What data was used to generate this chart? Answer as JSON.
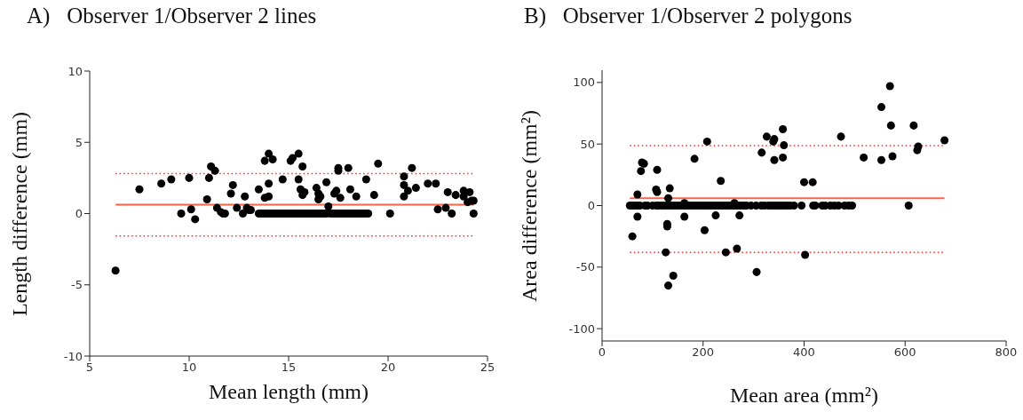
{
  "chart_data": [
    {
      "type": "scatter",
      "title": "A)   Observer 1/Observer 2 lines",
      "xlabel": "Mean length (mm)",
      "ylabel": "Length difference (mm)",
      "xlim": [
        5,
        25
      ],
      "ylim": [
        -10,
        10
      ],
      "xticks": [
        5,
        10,
        15,
        20,
        25
      ],
      "yticks": [
        -10,
        -5,
        0,
        5,
        10
      ],
      "marker": "circle",
      "series": [
        {
          "color": "#000000",
          "x": [
            6.3,
            7.5,
            8.6,
            9.1,
            9.6,
            10.0,
            10.1,
            10.3,
            10.9,
            11.0,
            11.1,
            11.3,
            11.4,
            11.6,
            11.7,
            11.8,
            12.1,
            12.2,
            12.4,
            12.7,
            12.8,
            12.9,
            13.0,
            13.1,
            13.5,
            13.8,
            13.8,
            14.0,
            14.0,
            14.0,
            14.2,
            14.7,
            15.1,
            15.2,
            15.5,
            15.5,
            15.6,
            15.7,
            15.7,
            15.8,
            16.4,
            16.5,
            16.5,
            16.6,
            16.9,
            17.0,
            17.3,
            17.4,
            17.5,
            17.5,
            17.6,
            18.0,
            18.1,
            18.4,
            18.9,
            19.3,
            19.5,
            20.1,
            20.8,
            20.8,
            20.8,
            21.0,
            21.2,
            21.4,
            22.0,
            22.4,
            22.5,
            22.9,
            23.0,
            23.2,
            23.4,
            23.8,
            23.8,
            24.0,
            24.1,
            24.2,
            24.3,
            24.3,
            13.5,
            13.6,
            13.7,
            13.8,
            13.9,
            14.0,
            14.1,
            14.2,
            14.3,
            14.4,
            14.5,
            14.6,
            14.7,
            14.8,
            14.9,
            15.0,
            15.1,
            15.2,
            15.3,
            15.4,
            15.5,
            15.6,
            15.7,
            15.8,
            15.9,
            16.0,
            16.1,
            16.2,
            16.3,
            16.4,
            16.5,
            16.6,
            16.7,
            16.8,
            16.9,
            17.1,
            17.2,
            17.3,
            17.4,
            17.5,
            17.6,
            17.7,
            17.8,
            17.9,
            18.0,
            18.1,
            18.2,
            18.3,
            18.4,
            18.5,
            18.6,
            18.7,
            18.8,
            18.9,
            19.0
          ],
          "values": [
            -4.0,
            1.7,
            2.1,
            2.4,
            0,
            2.5,
            0.3,
            -0.4,
            1.0,
            2.5,
            3.3,
            3.0,
            0.4,
            0.1,
            0,
            0,
            1.4,
            2.0,
            0.4,
            0,
            1.2,
            0.4,
            0.25,
            0.25,
            1.7,
            3.7,
            1.1,
            4.2,
            2.1,
            1.2,
            3.8,
            2.4,
            3.7,
            3.9,
            4.2,
            2.4,
            1.7,
            3.3,
            1.3,
            1.5,
            1.8,
            1.0,
            1.4,
            1.2,
            2.2,
            0.5,
            1.4,
            1.6,
            3.2,
            3.0,
            1.1,
            3.2,
            1.7,
            1.2,
            2.4,
            1.3,
            3.5,
            0,
            2.0,
            2.6,
            1.2,
            1.6,
            3.2,
            1.8,
            2.1,
            2.1,
            0.3,
            0.4,
            1.5,
            0,
            1.3,
            1.2,
            1.6,
            0.8,
            1.5,
            0.9,
            0,
            0.9,
            0,
            0,
            0,
            0,
            0,
            0,
            0,
            0,
            0,
            0,
            0,
            0,
            0,
            0,
            0,
            0,
            0,
            0,
            0,
            0,
            0,
            0,
            0,
            0,
            0,
            0,
            0,
            0,
            0,
            0,
            0,
            0,
            0,
            0,
            0,
            0,
            0,
            0,
            0,
            0,
            0,
            0,
            0,
            0,
            0,
            0,
            0,
            0,
            0,
            0,
            0,
            0,
            0,
            0,
            0
          ]
        }
      ],
      "ref_lines": [
        {
          "axis": "y",
          "value": 0.62,
          "color": "#ff6347",
          "line_style": "solid"
        },
        {
          "axis": "y",
          "value": 2.8,
          "color": "#ff2a2a",
          "line_style": "dotted"
        },
        {
          "axis": "y",
          "value": -1.58,
          "color": "#ff2a2a",
          "line_style": "dotted"
        }
      ]
    },
    {
      "type": "scatter",
      "title": "B)   Observer 1/Observer 2 polygons",
      "xlabel": "Mean area (mm²)",
      "ylabel": "Area difference (mm²)",
      "xlim": [
        0,
        800
      ],
      "ylim": [
        -110,
        110
      ],
      "xticks": [
        0,
        200,
        400,
        600,
        800
      ],
      "yticks": [
        -100,
        -50,
        0,
        50,
        100
      ],
      "marker": "circle",
      "series": [
        {
          "color": "#000000",
          "x": [
            60,
            70,
            70,
            77,
            79,
            83,
            109,
            107,
            109,
            126,
            129,
            129,
            131,
            131,
            134,
            141,
            163,
            163,
            183,
            203,
            208,
            225,
            235,
            245,
            262,
            267,
            272,
            306,
            316,
            326,
            339,
            341,
            341,
            358,
            358,
            360,
            400,
            402,
            417,
            473,
            518,
            553,
            553,
            570,
            572,
            575,
            607,
            617,
            624,
            626,
            678,
            55,
            60,
            65,
            70,
            75,
            85,
            90,
            100,
            108,
            112,
            118,
            124,
            130,
            136,
            142,
            148,
            154,
            160,
            166,
            172,
            178,
            184,
            190,
            196,
            202,
            208,
            214,
            220,
            226,
            232,
            238,
            244,
            250,
            256,
            262,
            268,
            274,
            280,
            286,
            295,
            305,
            315,
            322,
            330,
            336,
            342,
            348,
            354,
            360,
            366,
            372,
            380,
            395,
            418,
            422,
            436,
            442,
            452,
            460,
            468,
            480,
            488,
            495
          ],
          "values": [
            -25,
            9,
            -9,
            28,
            35,
            34,
            29,
            13,
            11,
            -38,
            -15,
            -17,
            -65,
            6,
            14,
            -57,
            2,
            -9,
            38,
            -20,
            52,
            -8,
            20,
            -38,
            2,
            -35,
            -8,
            -54,
            43,
            56,
            52,
            54,
            37,
            62,
            39,
            49,
            19,
            -40,
            19,
            56,
            39,
            37,
            80,
            97,
            65,
            40,
            0,
            65,
            45,
            48,
            53,
            0,
            0,
            0,
            0,
            0,
            0,
            0,
            0,
            0,
            0,
            0,
            0,
            0,
            0,
            0,
            0,
            0,
            0,
            0,
            0,
            0,
            0,
            0,
            0,
            0,
            0,
            0,
            0,
            0,
            0,
            0,
            0,
            0,
            0,
            0,
            0,
            0,
            0,
            0,
            0,
            0,
            0,
            0,
            0,
            0,
            0,
            0,
            0,
            0,
            0,
            0,
            0,
            0,
            0,
            0,
            0,
            0,
            0,
            0,
            0,
            0,
            0,
            0
          ]
        }
      ],
      "ref_lines": [
        {
          "axis": "y",
          "value": 6,
          "color": "#ff6347",
          "line_style": "solid"
        },
        {
          "axis": "y",
          "value": 48.6,
          "color": "#ff2a2a",
          "line_style": "dotted"
        },
        {
          "axis": "y",
          "value": -38,
          "color": "#ff2a2a",
          "line_style": "dotted"
        }
      ]
    }
  ]
}
